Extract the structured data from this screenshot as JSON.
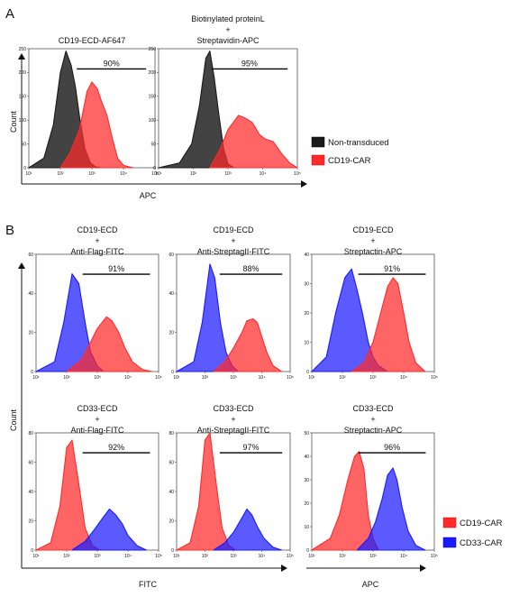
{
  "panel_a": {
    "label": "A",
    "ylabel": "Count",
    "xlabel": "APC",
    "legend": [
      {
        "label": "Non-transduced",
        "color": "#1a1a1a"
      },
      {
        "label": "CD19-CAR",
        "color": "#ff2a2a"
      }
    ]
  },
  "panel_b": {
    "label": "B",
    "ylabel": "Count",
    "xlabel_left": "FITC",
    "xlabel_right": "APC",
    "legend": [
      {
        "label": "CD19-CAR",
        "color": "#ff2a2a"
      },
      {
        "label": "CD33-CAR",
        "color": "#1a1aff"
      }
    ]
  },
  "chart_data": [
    {
      "type": "area",
      "panel": "A",
      "title_lines": [
        "CD19-ECD-AF647"
      ],
      "xscale": "log",
      "xlim": [
        10,
        100000
      ],
      "yticks": [
        0,
        50,
        100,
        150,
        200,
        250
      ],
      "ylim": [
        0,
        250
      ],
      "series": [
        {
          "name": "Non-transduced",
          "color": "#1a1a1a",
          "x": [
            10,
            30,
            60,
            100,
            150,
            220,
            300,
            420,
            600,
            900,
            1300,
            2000
          ],
          "y": [
            0,
            20,
            90,
            200,
            245,
            215,
            170,
            100,
            40,
            10,
            2,
            0
          ]
        },
        {
          "name": "CD19-CAR",
          "color": "#ff2a2a",
          "x": [
            100,
            200,
            400,
            700,
            1000,
            1500,
            2000,
            3000,
            4500,
            6500,
            10000,
            20000
          ],
          "y": [
            0,
            30,
            80,
            160,
            180,
            165,
            140,
            110,
            60,
            20,
            5,
            0
          ]
        }
      ],
      "annotation": "90%"
    },
    {
      "type": "area",
      "panel": "A",
      "title_lines": [
        "Biotinylated proteinL",
        "+",
        "Streptavidin-APC"
      ],
      "xscale": "log",
      "xlim": [
        10,
        100000
      ],
      "yticks": [
        0,
        50,
        100,
        150,
        200,
        250
      ],
      "ylim": [
        0,
        250
      ],
      "series": [
        {
          "name": "Non-transduced",
          "color": "#1a1a1a",
          "x": [
            10,
            40,
            90,
            150,
            230,
            300,
            400,
            550,
            750,
            1000,
            1500
          ],
          "y": [
            0,
            10,
            50,
            130,
            230,
            245,
            190,
            110,
            40,
            8,
            0
          ]
        },
        {
          "name": "CD19-CAR",
          "color": "#ff2a2a",
          "x": [
            300,
            600,
            1000,
            2000,
            3000,
            5000,
            8000,
            12000,
            20000,
            35000,
            60000,
            100000
          ],
          "y": [
            0,
            40,
            80,
            110,
            105,
            95,
            70,
            60,
            55,
            30,
            10,
            0
          ]
        }
      ],
      "annotation": "95%"
    },
    {
      "type": "area",
      "panel": "B",
      "title_lines": [
        "CD19-ECD",
        "+",
        "Anti-Flag-FITC"
      ],
      "xscale": "log",
      "xlim": [
        10,
        100000
      ],
      "yticks": [
        0,
        20,
        40,
        60
      ],
      "ylim": [
        0,
        60
      ],
      "series": [
        {
          "name": "CD33-CAR",
          "color": "#1a1aff",
          "x": [
            10,
            40,
            80,
            150,
            250,
            400,
            600,
            1000,
            1600
          ],
          "y": [
            0,
            5,
            25,
            50,
            45,
            25,
            10,
            3,
            0
          ]
        },
        {
          "name": "CD19-CAR",
          "color": "#ff2a2a",
          "x": [
            100,
            300,
            600,
            1000,
            2000,
            3000,
            5000,
            8000,
            14000,
            30000,
            60000
          ],
          "y": [
            0,
            6,
            15,
            22,
            28,
            26,
            20,
            12,
            5,
            1,
            0
          ]
        }
      ],
      "annotation": "91%"
    },
    {
      "type": "area",
      "panel": "B",
      "title_lines": [
        "CD19-ECD",
        "+",
        "Anti-StreptagII-FITC"
      ],
      "xscale": "log",
      "xlim": [
        10,
        100000
      ],
      "yticks": [
        0,
        20,
        40,
        60
      ],
      "ylim": [
        0,
        60
      ],
      "series": [
        {
          "name": "CD33-CAR",
          "color": "#1a1aff",
          "x": [
            10,
            40,
            80,
            150,
            220,
            350,
            550,
            900,
            1500
          ],
          "y": [
            0,
            5,
            25,
            55,
            48,
            25,
            10,
            3,
            0
          ]
        },
        {
          "name": "CD19-CAR",
          "color": "#ff2a2a",
          "x": [
            200,
            500,
            1000,
            2000,
            3000,
            5000,
            7000,
            10000,
            15000,
            25000,
            50000
          ],
          "y": [
            0,
            5,
            12,
            20,
            26,
            27,
            25,
            18,
            10,
            3,
            0
          ]
        }
      ],
      "annotation": "88%"
    },
    {
      "type": "area",
      "panel": "B",
      "title_lines": [
        "CD19-ECD",
        "+",
        "Streptactin-APC"
      ],
      "xscale": "log",
      "xlim": [
        10,
        100000
      ],
      "yticks": [
        0,
        10,
        20,
        30,
        40
      ],
      "ylim": [
        0,
        40
      ],
      "series": [
        {
          "name": "CD33-CAR",
          "color": "#1a1aff",
          "x": [
            10,
            30,
            60,
            120,
            200,
            300,
            450,
            700,
            1000,
            1500,
            3000
          ],
          "y": [
            0,
            5,
            20,
            32,
            35,
            28,
            20,
            10,
            5,
            2,
            0
          ]
        },
        {
          "name": "CD19-CAR",
          "color": "#ff2a2a",
          "x": [
            200,
            500,
            1000,
            2000,
            3000,
            4500,
            6500,
            10000,
            15000,
            25000,
            50000
          ],
          "y": [
            0,
            3,
            10,
            22,
            29,
            32,
            30,
            20,
            10,
            3,
            0
          ]
        }
      ],
      "annotation": "91%"
    },
    {
      "type": "area",
      "panel": "B",
      "title_lines": [
        "CD33-ECD",
        "+",
        "Anti-Flag-FITC"
      ],
      "xscale": "log",
      "xlim": [
        10,
        100000
      ],
      "yticks": [
        0,
        20,
        40,
        60,
        80
      ],
      "ylim": [
        0,
        80
      ],
      "series": [
        {
          "name": "CD19-CAR",
          "color": "#ff2a2a",
          "x": [
            10,
            30,
            60,
            100,
            150,
            250,
            400,
            700,
            1200
          ],
          "y": [
            0,
            5,
            30,
            70,
            75,
            45,
            15,
            3,
            0
          ]
        },
        {
          "name": "CD33-CAR",
          "color": "#1a1aff",
          "x": [
            150,
            400,
            800,
            1500,
            2500,
            4000,
            6500,
            10000,
            20000,
            40000
          ],
          "y": [
            0,
            6,
            14,
            22,
            28,
            24,
            18,
            10,
            3,
            0
          ]
        }
      ],
      "annotation": "92%"
    },
    {
      "type": "area",
      "panel": "B",
      "title_lines": [
        "CD33-ECD",
        "+",
        "Anti-StreptagII-FITC"
      ],
      "xscale": "log",
      "xlim": [
        10,
        100000
      ],
      "yticks": [
        0,
        20,
        40,
        60,
        80
      ],
      "ylim": [
        0,
        80
      ],
      "series": [
        {
          "name": "CD19-CAR",
          "color": "#ff2a2a",
          "x": [
            10,
            30,
            60,
            100,
            150,
            250,
            400,
            700,
            1200
          ],
          "y": [
            0,
            5,
            30,
            75,
            80,
            45,
            15,
            3,
            0
          ]
        },
        {
          "name": "CD33-CAR",
          "color": "#1a1aff",
          "x": [
            200,
            500,
            1000,
            2000,
            3000,
            4500,
            7000,
            12000,
            25000,
            50000
          ],
          "y": [
            0,
            5,
            12,
            22,
            28,
            24,
            16,
            8,
            2,
            0
          ]
        }
      ],
      "annotation": "97%"
    },
    {
      "type": "area",
      "panel": "B",
      "title_lines": [
        "CD33-ECD",
        "+",
        "Streptactin-APC"
      ],
      "xscale": "log",
      "xlim": [
        10,
        100000
      ],
      "yticks": [
        0,
        10,
        20,
        30,
        40,
        50
      ],
      "ylim": [
        0,
        50
      ],
      "series": [
        {
          "name": "CD19-CAR",
          "color": "#ff2a2a",
          "x": [
            10,
            40,
            80,
            150,
            250,
            350,
            500,
            700,
            1000,
            1500
          ],
          "y": [
            0,
            5,
            15,
            30,
            40,
            42,
            35,
            15,
            5,
            0
          ]
        },
        {
          "name": "CD33-CAR",
          "color": "#1a1aff",
          "x": [
            300,
            700,
            1200,
            2000,
            3000,
            4500,
            6000,
            9000,
            14000,
            25000,
            50000
          ],
          "y": [
            0,
            5,
            12,
            22,
            32,
            35,
            30,
            18,
            8,
            2,
            0
          ]
        }
      ],
      "annotation": "96%"
    }
  ]
}
